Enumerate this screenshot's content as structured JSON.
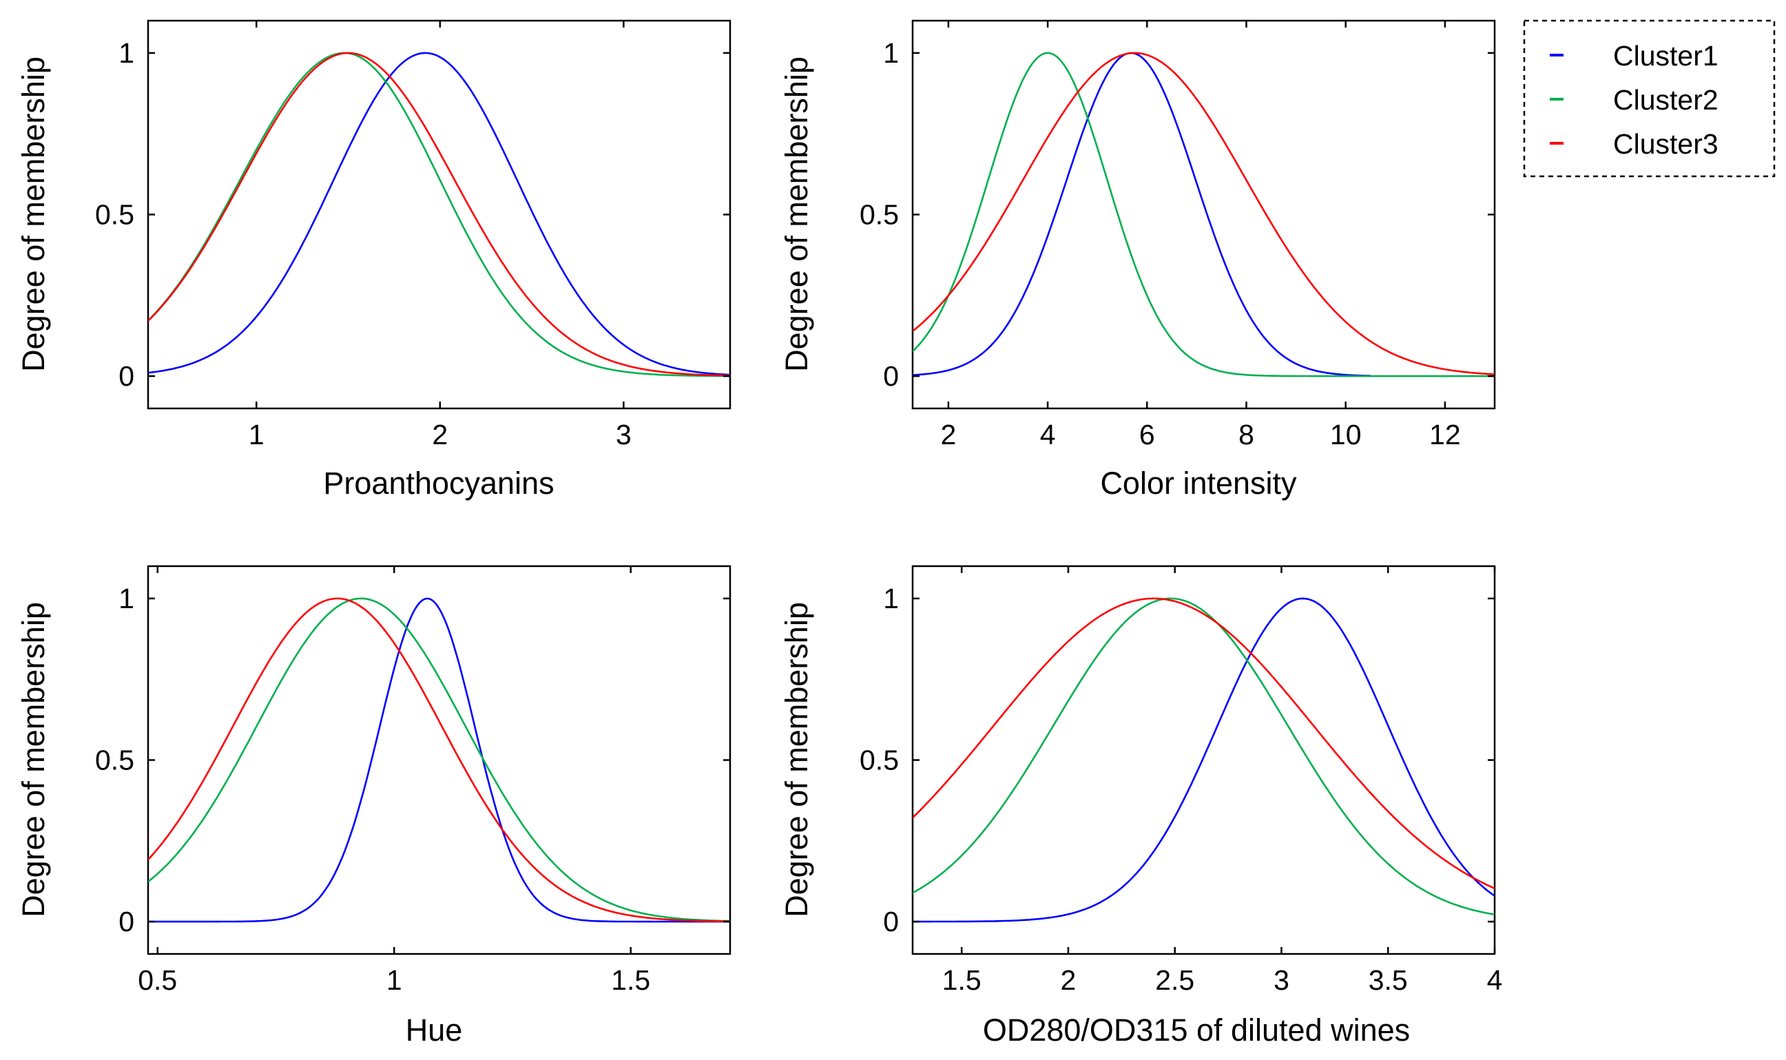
{
  "legend": {
    "entries": [
      {
        "label": "Cluster1",
        "color": "#0000ff"
      },
      {
        "label": "Cluster2",
        "color": "#00b050"
      },
      {
        "label": "Cluster3",
        "color": "#ff0000"
      }
    ]
  },
  "chart_data": [
    {
      "type": "line",
      "title": "",
      "xlabel": "Proanthocyanins",
      "ylabel": "Degree of membership",
      "xlim": [
        0.41,
        3.58
      ],
      "ylim": [
        -0.1,
        1.1
      ],
      "xticks": [
        1,
        2,
        3
      ],
      "xtick_labels": [
        "1",
        "2",
        "3"
      ],
      "yticks": [
        0,
        0.5,
        1
      ],
      "ytick_labels": [
        "0",
        "0.5",
        "1"
      ],
      "series": [
        {
          "name": "Cluster1",
          "color": "#0000ff",
          "center": 1.92,
          "sigma": 0.5,
          "sigma_right": 0.5,
          "x_from": 0.41,
          "x_to": 3.58
        },
        {
          "name": "Cluster2",
          "color": "#00b050",
          "center": 1.48,
          "sigma": 0.57,
          "sigma_right": 0.52,
          "x_from": 0.41,
          "x_to": 3.58
        },
        {
          "name": "Cluster3",
          "color": "#ff0000",
          "center": 1.5,
          "sigma": 0.58,
          "sigma_right": 0.58,
          "x_from": 0.41,
          "x_to": 3.58
        }
      ]
    },
    {
      "type": "line",
      "title": "",
      "xlabel": "Color intensity",
      "ylabel": "Degree of membership",
      "xlim": [
        1.28,
        13.0
      ],
      "ylim": [
        -0.1,
        1.1
      ],
      "xticks": [
        2,
        4,
        6,
        8,
        10,
        12
      ],
      "xtick_labels": [
        "2",
        "4",
        "6",
        "8",
        "10",
        "12"
      ],
      "yticks": [
        0,
        0.5,
        1
      ],
      "ytick_labels": [
        "0",
        "0.5",
        "1"
      ],
      "series": [
        {
          "name": "Cluster1",
          "color": "#0000ff",
          "center": 5.68,
          "sigma": 1.3,
          "sigma_right": 1.3,
          "x_from": 1.28,
          "x_to": 10.5
        },
        {
          "name": "Cluster2",
          "color": "#00b050",
          "center": 4.0,
          "sigma": 1.2,
          "sigma_right": 1.2,
          "x_from": 1.28,
          "x_to": 13.0
        },
        {
          "name": "Cluster3",
          "color": "#ff0000",
          "center": 5.75,
          "sigma": 2.25,
          "sigma_right": 2.25,
          "x_from": 1.28,
          "x_to": 13.0
        }
      ]
    },
    {
      "type": "line",
      "title": "",
      "xlabel": "Hue",
      "ylabel": "Degree of membership",
      "xlim": [
        0.48,
        1.71
      ],
      "ylim": [
        -0.1,
        1.1
      ],
      "xticks": [
        0.5,
        1,
        1.5
      ],
      "xtick_labels": [
        "0.5",
        "1",
        "1.5"
      ],
      "yticks": [
        0,
        0.5,
        1
      ],
      "ytick_labels": [
        "0",
        "0.5",
        "1"
      ],
      "series": [
        {
          "name": "Cluster1",
          "color": "#0000ff",
          "center": 1.07,
          "sigma": 0.1,
          "sigma_right": 0.1,
          "x_from": 0.48,
          "x_to": 1.71
        },
        {
          "name": "Cluster2",
          "color": "#00b050",
          "center": 0.93,
          "sigma": 0.22,
          "sigma_right": 0.22,
          "x_from": 0.48,
          "x_to": 1.71
        },
        {
          "name": "Cluster3",
          "color": "#ff0000",
          "center": 0.88,
          "sigma": 0.22,
          "sigma_right": 0.22,
          "x_from": 0.48,
          "x_to": 1.71
        }
      ]
    },
    {
      "type": "line",
      "title": "",
      "xlabel": "OD280/OD315 of diluted wines",
      "ylabel": "Degree of membership",
      "xlim": [
        1.27,
        4.0
      ],
      "ylim": [
        -0.1,
        1.1
      ],
      "xticks": [
        1.5,
        2,
        2.5,
        3,
        3.5,
        4
      ],
      "xtick_labels": [
        "1.5",
        "2",
        "2.5",
        "3",
        "3.5",
        "4"
      ],
      "yticks": [
        0,
        0.5,
        1
      ],
      "ytick_labels": [
        "0",
        "0.5",
        "1"
      ],
      "series": [
        {
          "name": "Cluster1",
          "color": "#0000ff",
          "center": 3.1,
          "sigma": 0.4,
          "sigma_right": 0.4,
          "x_from": 1.27,
          "x_to": 4.0
        },
        {
          "name": "Cluster2",
          "color": "#00b050",
          "center": 2.48,
          "sigma": 0.55,
          "sigma_right": 0.55,
          "x_from": 1.27,
          "x_to": 4.0
        },
        {
          "name": "Cluster3",
          "color": "#ff0000",
          "center": 2.4,
          "sigma": 0.75,
          "sigma_right": 0.75,
          "x_from": 1.27,
          "x_to": 4.0
        }
      ]
    }
  ]
}
